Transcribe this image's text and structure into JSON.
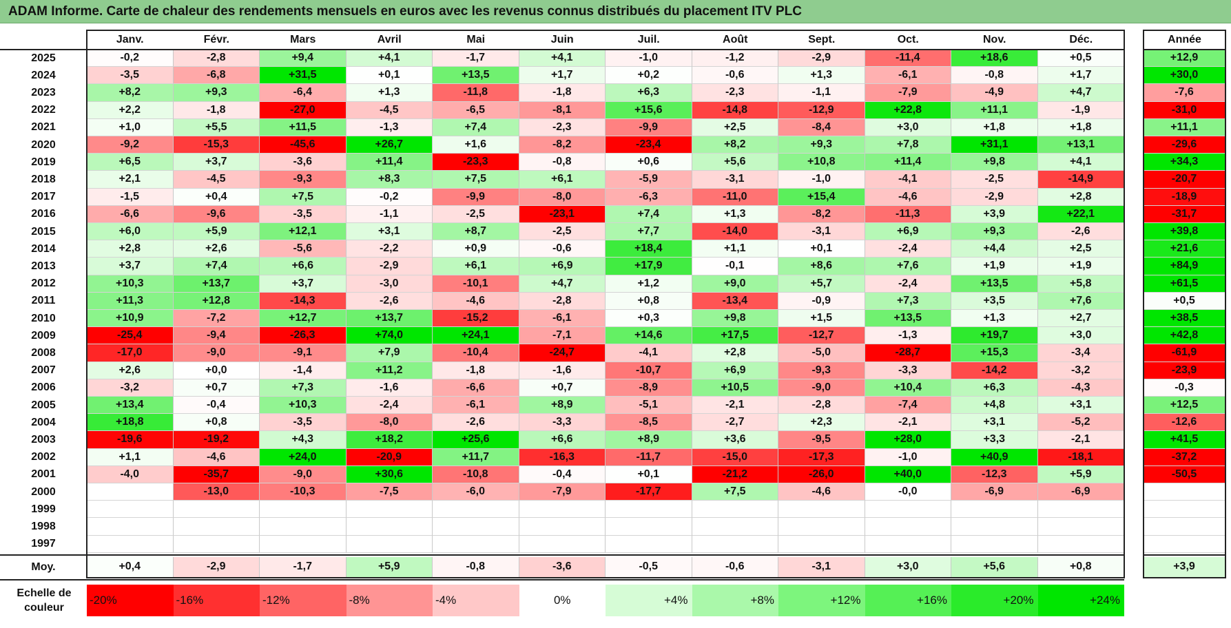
{
  "title": "ADAM Informe. Carte de chaleur des rendements mensuels en euros avec les revenus connus distribués du placement ITV PLC",
  "months": [
    "Janv.",
    "Févr.",
    "Mars",
    "Avril",
    "Mai",
    "Juin",
    "Juil.",
    "Août",
    "Sept.",
    "Oct.",
    "Nov.",
    "Déc."
  ],
  "annual_header": "Année",
  "avg_label": "Moy.",
  "scale_label": "Echelle de couleur",
  "chart_data": {
    "type": "heatmap",
    "title": "ADAM Informe. Carte de chaleur des rendements mensuels en euros avec les revenus connus distribués du placement ITV PLC",
    "x": [
      "Janv.",
      "Févr.",
      "Mars",
      "Avril",
      "Mai",
      "Juin",
      "Juil.",
      "Août",
      "Sept.",
      "Oct.",
      "Nov.",
      "Déc."
    ],
    "rows": [
      {
        "year": "2025",
        "values": [
          "-0,2",
          "-2,8",
          "+9,4",
          "+4,1",
          "-1,7",
          "+4,1",
          "-1,0",
          "-1,2",
          "-2,9",
          "-11,4",
          "+18,6",
          "+0,5"
        ],
        "annual": "+12,9"
      },
      {
        "year": "2024",
        "values": [
          "-3,5",
          "-6,8",
          "+31,5",
          "+0,1",
          "+13,5",
          "+1,7",
          "+0,2",
          "-0,6",
          "+1,3",
          "-6,1",
          "-0,8",
          "+1,7"
        ],
        "annual": "+30,0"
      },
      {
        "year": "2023",
        "values": [
          "+8,2",
          "+9,3",
          "-6,4",
          "+1,3",
          "-11,8",
          "-1,8",
          "+6,3",
          "-2,3",
          "-1,1",
          "-7,9",
          "-4,9",
          "+4,7"
        ],
        "annual": "-7,6"
      },
      {
        "year": "2022",
        "values": [
          "+2,2",
          "-1,8",
          "-27,0",
          "-4,5",
          "-6,5",
          "-8,1",
          "+15,6",
          "-14,8",
          "-12,9",
          "+22,8",
          "+11,1",
          "-1,9"
        ],
        "annual": "-31,0"
      },
      {
        "year": "2021",
        "values": [
          "+1,0",
          "+5,5",
          "+11,5",
          "-1,3",
          "+7,4",
          "-2,3",
          "-9,9",
          "+2,5",
          "-8,4",
          "+3,0",
          "+1,8",
          "+1,8"
        ],
        "annual": "+11,1"
      },
      {
        "year": "2020",
        "values": [
          "-9,2",
          "-15,3",
          "-45,6",
          "+26,7",
          "+1,6",
          "-8,2",
          "-23,4",
          "+8,2",
          "+9,3",
          "+7,8",
          "+31,1",
          "+13,1"
        ],
        "annual": "-29,6"
      },
      {
        "year": "2019",
        "values": [
          "+6,5",
          "+3,7",
          "-3,6",
          "+11,4",
          "-23,3",
          "-0,8",
          "+0,6",
          "+5,6",
          "+10,8",
          "+11,4",
          "+9,8",
          "+4,1"
        ],
        "annual": "+34,3"
      },
      {
        "year": "2018",
        "values": [
          "+2,1",
          "-4,5",
          "-9,3",
          "+8,3",
          "+7,5",
          "+6,1",
          "-5,9",
          "-3,1",
          "-1,0",
          "-4,1",
          "-2,5",
          "-14,9"
        ],
        "annual": "-20,7"
      },
      {
        "year": "2017",
        "values": [
          "-1,5",
          "+0,4",
          "+7,5",
          "-0,2",
          "-9,9",
          "-8,0",
          "-6,3",
          "-11,0",
          "+15,4",
          "-4,6",
          "-2,9",
          "+2,8"
        ],
        "annual": "-18,9"
      },
      {
        "year": "2016",
        "values": [
          "-6,6",
          "-9,6",
          "-3,5",
          "-1,1",
          "-2,5",
          "-23,1",
          "+7,4",
          "+1,3",
          "-8,2",
          "-11,3",
          "+3,9",
          "+22,1"
        ],
        "annual": "-31,7"
      },
      {
        "year": "2015",
        "values": [
          "+6,0",
          "+5,9",
          "+12,1",
          "+3,1",
          "+8,7",
          "-2,5",
          "+7,7",
          "-14,0",
          "-3,1",
          "+6,9",
          "+9,3",
          "-2,6"
        ],
        "annual": "+39,8"
      },
      {
        "year": "2014",
        "values": [
          "+2,8",
          "+2,6",
          "-5,6",
          "-2,2",
          "+0,9",
          "-0,6",
          "+18,4",
          "+1,1",
          "+0,1",
          "-2,4",
          "+4,4",
          "+2,5"
        ],
        "annual": "+21,6"
      },
      {
        "year": "2013",
        "values": [
          "+3,7",
          "+7,4",
          "+6,6",
          "-2,9",
          "+6,1",
          "+6,9",
          "+17,9",
          "-0,1",
          "+8,6",
          "+7,6",
          "+1,9",
          "+1,9"
        ],
        "annual": "+84,9"
      },
      {
        "year": "2012",
        "values": [
          "+10,3",
          "+13,7",
          "+3,7",
          "-3,0",
          "-10,1",
          "+4,7",
          "+1,2",
          "+9,0",
          "+5,7",
          "-2,4",
          "+13,5",
          "+5,8"
        ],
        "annual": "+61,5"
      },
      {
        "year": "2011",
        "values": [
          "+11,3",
          "+12,8",
          "-14,3",
          "-2,6",
          "-4,6",
          "-2,8",
          "+0,8",
          "-13,4",
          "-0,9",
          "+7,3",
          "+3,5",
          "+7,6"
        ],
        "annual": "+0,5"
      },
      {
        "year": "2010",
        "values": [
          "+10,9",
          "-7,2",
          "+12,7",
          "+13,7",
          "-15,2",
          "-6,1",
          "+0,3",
          "+9,8",
          "+1,5",
          "+13,5",
          "+1,3",
          "+2,7"
        ],
        "annual": "+38,5"
      },
      {
        "year": "2009",
        "values": [
          "-25,4",
          "-9,4",
          "-26,3",
          "+74,0",
          "+24,1",
          "-7,1",
          "+14,6",
          "+17,5",
          "-12,7",
          "-1,3",
          "+19,7",
          "+3,0"
        ],
        "annual": "+42,8"
      },
      {
        "year": "2008",
        "values": [
          "-17,0",
          "-9,0",
          "-9,1",
          "+7,9",
          "-10,4",
          "-24,7",
          "-4,1",
          "+2,8",
          "-5,0",
          "-28,7",
          "+15,3",
          "-3,4"
        ],
        "annual": "-61,9"
      },
      {
        "year": "2007",
        "values": [
          "+2,6",
          "+0,0",
          "-1,4",
          "+11,2",
          "-1,8",
          "-1,6",
          "-10,7",
          "+6,9",
          "-9,3",
          "-3,3",
          "-14,2",
          "-3,2"
        ],
        "annual": "-23,9"
      },
      {
        "year": "2006",
        "values": [
          "-3,2",
          "+0,7",
          "+7,3",
          "-1,6",
          "-6,6",
          "+0,7",
          "-8,9",
          "+10,5",
          "-9,0",
          "+10,4",
          "+6,3",
          "-4,3"
        ],
        "annual": "-0,3"
      },
      {
        "year": "2005",
        "values": [
          "+13,4",
          "-0,4",
          "+10,3",
          "-2,4",
          "-6,1",
          "+8,9",
          "-5,1",
          "-2,1",
          "-2,8",
          "-7,4",
          "+4,8",
          "+3,1"
        ],
        "annual": "+12,5"
      },
      {
        "year": "2004",
        "values": [
          "+18,8",
          "+0,8",
          "-3,5",
          "-8,0",
          "-2,6",
          "-3,3",
          "-8,5",
          "-2,7",
          "+2,3",
          "-2,1",
          "+3,1",
          "-5,2"
        ],
        "annual": "-12,6"
      },
      {
        "year": "2003",
        "values": [
          "-19,6",
          "-19,2",
          "+4,3",
          "+18,2",
          "+25,6",
          "+6,6",
          "+8,9",
          "+3,6",
          "-9,5",
          "+28,0",
          "+3,3",
          "-2,1"
        ],
        "annual": "+41,5"
      },
      {
        "year": "2002",
        "values": [
          "+1,1",
          "-4,6",
          "+24,0",
          "-20,9",
          "+11,7",
          "-16,3",
          "-11,7",
          "-15,0",
          "-17,3",
          "-1,0",
          "+40,9",
          "-18,1"
        ],
        "annual": "-37,2"
      },
      {
        "year": "2001",
        "values": [
          "-4,0",
          "-35,7",
          "-9,0",
          "+30,6",
          "-10,8",
          "-0,4",
          "+0,1",
          "-21,2",
          "-26,0",
          "+40,0",
          "-12,3",
          "+5,9"
        ],
        "annual": "-50,5"
      },
      {
        "year": "2000",
        "values": [
          "",
          "-13,0",
          "-10,3",
          "-7,5",
          "-6,0",
          "-7,9",
          "-17,7",
          "+7,5",
          "-4,6",
          "-0,0",
          "-6,9",
          "-6,9"
        ],
        "annual": ""
      },
      {
        "year": "1999",
        "values": [
          "",
          "",
          "",
          "",
          "",
          "",
          "",
          "",
          "",
          "",
          "",
          ""
        ],
        "annual": ""
      },
      {
        "year": "1998",
        "values": [
          "",
          "",
          "",
          "",
          "",
          "",
          "",
          "",
          "",
          "",
          "",
          ""
        ],
        "annual": ""
      },
      {
        "year": "1997",
        "values": [
          "",
          "",
          "",
          "",
          "",
          "",
          "",
          "",
          "",
          "",
          "",
          ""
        ],
        "annual": ""
      }
    ],
    "averages": {
      "values": [
        "+0,4",
        "-2,9",
        "-1,7",
        "+5,9",
        "-0,8",
        "-3,6",
        "-0,5",
        "-0,6",
        "-3,1",
        "+3,0",
        "+5,6",
        "+0,8"
      ],
      "annual": "+3,9"
    },
    "color_scale": [
      {
        "label": "-20%",
        "value": -20,
        "color": "#ff0000"
      },
      {
        "label": "-16%",
        "value": -16,
        "color": "#ff3030"
      },
      {
        "label": "-12%",
        "value": -12,
        "color": "#ff6464"
      },
      {
        "label": "-8%",
        "value": -8,
        "color": "#ff9494"
      },
      {
        "label": "-4%",
        "value": -4,
        "color": "#ffc8c8"
      },
      {
        "label": "0%",
        "value": 0,
        "color": "#ffffff"
      },
      {
        "label": "+4%",
        "value": 4,
        "color": "#d6fcd6"
      },
      {
        "label": "+8%",
        "value": 8,
        "color": "#aaf8aa"
      },
      {
        "label": "+12%",
        "value": 12,
        "color": "#7df57d"
      },
      {
        "label": "+16%",
        "value": 16,
        "color": "#55f055"
      },
      {
        "label": "+20%",
        "value": 20,
        "color": "#2aeb2a"
      },
      {
        "label": "+24%",
        "value": 24,
        "color": "#00e600"
      }
    ]
  }
}
